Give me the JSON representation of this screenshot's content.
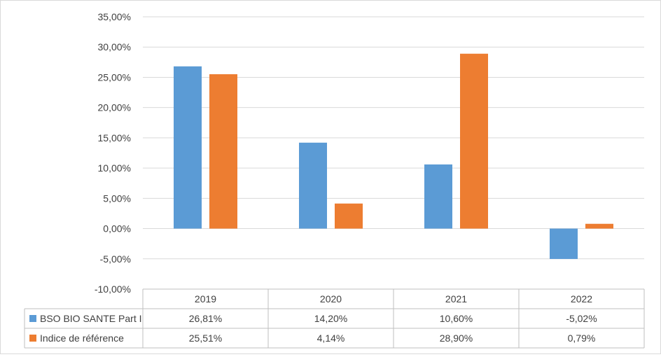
{
  "chart_data": {
    "type": "bar",
    "title": "",
    "xlabel": "",
    "ylabel": "",
    "categories": [
      "2019",
      "2020",
      "2021",
      "2022"
    ],
    "series": [
      {
        "name": "BSO BIO SANTE Part I",
        "color": "#5b9bd5",
        "values": [
          26.81,
          14.2,
          10.6,
          -5.02
        ],
        "labels": [
          "26,81%",
          "14,20%",
          "10,60%",
          "-5,02%"
        ]
      },
      {
        "name": "Indice de référence",
        "color": "#ed7d31",
        "values": [
          25.51,
          4.14,
          28.9,
          0.79
        ],
        "labels": [
          "25,51%",
          "4,14%",
          "28,90%",
          "0,79%"
        ]
      }
    ],
    "ylim": [
      -10,
      35
    ],
    "yticks": [
      35,
      30,
      25,
      20,
      15,
      10,
      5,
      0,
      -5,
      -10
    ],
    "ytick_labels": [
      "35,00%",
      "30,00%",
      "25,00%",
      "20,00%",
      "15,00%",
      "10,00%",
      "5,00%",
      "0,00%",
      "-5,00%",
      "-10,00%"
    ],
    "grid": true,
    "legend": "data-table-below"
  }
}
